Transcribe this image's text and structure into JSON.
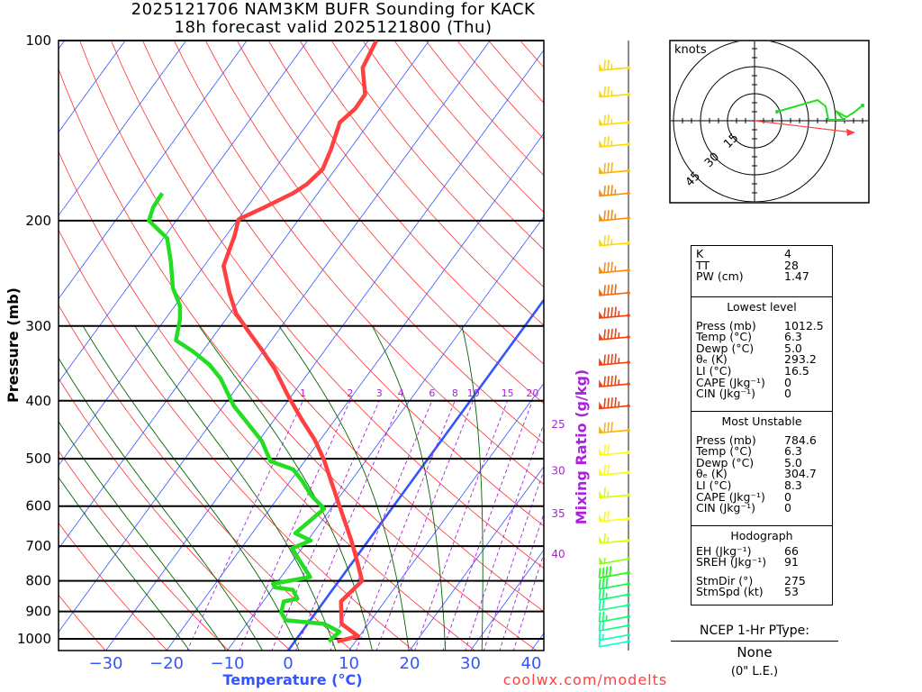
{
  "header": {
    "title_line1": "2025121706 NAM3KM BUFR Sounding for KACK",
    "title_line2": "18h forecast valid 2025121800 (Thu)"
  },
  "footer": {
    "credit": "coolwx.com/modelts"
  },
  "ptype": {
    "heading": "NCEP 1-Hr PType:",
    "value": "None",
    "accum": "(0\" L.E.)"
  },
  "colors": {
    "temperature": "#ff4040",
    "dewpoint": "#22dd22",
    "isotherm": "#3355ff",
    "dry_adiabat": "#ff3030",
    "moist_adiabat": "#006600",
    "mixing_ratio": "#aa22dd",
    "storm_motion": "#ff4040"
  },
  "chart_data": {
    "type": "skew-t",
    "xlabel": "Temperature (°C)",
    "ylabel": "Pressure (mb)",
    "mixing_ratio_label": "Mixing Ratio (g/kg)",
    "pressure_ticks": [
      100,
      200,
      300,
      400,
      500,
      600,
      700,
      800,
      900,
      1000
    ],
    "temperature_ticks": [
      -30,
      -20,
      -10,
      0,
      10,
      20,
      30,
      40
    ],
    "pressure_range": [
      100,
      1046
    ],
    "temperature_range_at_bottom": [
      -38,
      42
    ],
    "mixing_ratio_top_labels": [
      1,
      2,
      3,
      4,
      6,
      8,
      10,
      15,
      20
    ],
    "mixing_ratio_side_labels": [
      25,
      30,
      35,
      40
    ],
    "temperature_profile": [
      [
        1010,
        7.0
      ],
      [
        990,
        9.8
      ],
      [
        944,
        5.6
      ],
      [
        866,
        2.8
      ],
      [
        800,
        3.8
      ],
      [
        750,
        1.1
      ],
      [
        685,
        -2.8
      ],
      [
        650,
        -5.2
      ],
      [
        588,
        -9.8
      ],
      [
        502,
        -17.0
      ],
      [
        465,
        -20.9
      ],
      [
        429,
        -25.6
      ],
      [
        393,
        -30.5
      ],
      [
        354,
        -36.0
      ],
      [
        331,
        -40.0
      ],
      [
        309,
        -44.3
      ],
      [
        286,
        -49.0
      ],
      [
        264,
        -52.6
      ],
      [
        238,
        -56.8
      ],
      [
        212,
        -58.6
      ],
      [
        199,
        -59.9
      ],
      [
        191,
        -57.4
      ],
      [
        180,
        -54.1
      ],
      [
        174,
        -52.9
      ],
      [
        164,
        -52.1
      ],
      [
        152,
        -53.1
      ],
      [
        137,
        -54.9
      ],
      [
        130,
        -54.0
      ],
      [
        123,
        -54.1
      ],
      [
        111,
        -57.7
      ],
      [
        100,
        -58.7
      ]
    ],
    "dewpoint_profile": [
      [
        1010,
        5.6
      ],
      [
        973,
        6.2
      ],
      [
        944,
        2.7
      ],
      [
        931,
        -4.0
      ],
      [
        904,
        -5.7
      ],
      [
        866,
        -6.6
      ],
      [
        857,
        -4.7
      ],
      [
        828,
        -6.5
      ],
      [
        820,
        -9.8
      ],
      [
        809,
        -10.5
      ],
      [
        788,
        -5.2
      ],
      [
        735,
        -9.3
      ],
      [
        706,
        -11.6
      ],
      [
        685,
        -9.5
      ],
      [
        666,
        -12.9
      ],
      [
        606,
        -11.1
      ],
      [
        575,
        -14.9
      ],
      [
        545,
        -18.0
      ],
      [
        521,
        -20.9
      ],
      [
        505,
        -25.6
      ],
      [
        467,
        -29.5
      ],
      [
        408,
        -38.3
      ],
      [
        367,
        -43.8
      ],
      [
        348,
        -47.3
      ],
      [
        331,
        -51.5
      ],
      [
        317,
        -55.7
      ],
      [
        293,
        -57.5
      ],
      [
        278,
        -59.1
      ],
      [
        259,
        -62.5
      ],
      [
        234,
        -66.0
      ],
      [
        214,
        -69.4
      ],
      [
        200,
        -74.5
      ],
      [
        190,
        -75.4
      ],
      [
        180,
        -75.6
      ]
    ],
    "wind_barbs_kt": [
      [
        111,
        265,
        75
      ],
      [
        123,
        265,
        75
      ],
      [
        137,
        265,
        75
      ],
      [
        149,
        265,
        75
      ],
      [
        165,
        265,
        80
      ],
      [
        180,
        265,
        85
      ],
      [
        198,
        265,
        85
      ],
      [
        218,
        265,
        75
      ],
      [
        242,
        265,
        85
      ],
      [
        264,
        265,
        90
      ],
      [
        288,
        265,
        95
      ],
      [
        313,
        265,
        95
      ],
      [
        345,
        265,
        95
      ],
      [
        375,
        265,
        95
      ],
      [
        408,
        265,
        95
      ],
      [
        448,
        265,
        80
      ],
      [
        488,
        265,
        70
      ],
      [
        527,
        265,
        70
      ],
      [
        575,
        265,
        65
      ],
      [
        630,
        265,
        70
      ],
      [
        685,
        265,
        65
      ],
      [
        735,
        270,
        55
      ],
      [
        775,
        270,
        40
      ],
      [
        809,
        270,
        30
      ],
      [
        843,
        270,
        25
      ],
      [
        878,
        270,
        20
      ],
      [
        918,
        270,
        25
      ],
      [
        950,
        270,
        20
      ],
      [
        985,
        270,
        15
      ],
      [
        1010,
        270,
        10
      ]
    ],
    "hodograph": {
      "units_label": "knots",
      "rings_kt": [
        15,
        30,
        45
      ],
      "points_uv_kt": [
        [
          12.5,
          5
        ],
        [
          35,
          11.5
        ],
        [
          39.5,
          8
        ],
        [
          41,
          0.5
        ],
        [
          49.5,
          0.5
        ],
        [
          45,
          5.5
        ],
        [
          51,
          2
        ],
        [
          55,
          4.5
        ],
        [
          60,
          8.5
        ]
      ],
      "storm_motion_uv_kt": [
        54.5,
        -6.5
      ]
    }
  },
  "stats": {
    "indices": [
      {
        "label": "K",
        "value": "4"
      },
      {
        "label": "TT",
        "value": "28"
      },
      {
        "label": "PW (cm)",
        "value": "1.47"
      }
    ],
    "lowest_level": {
      "heading": "Lowest level",
      "rows": [
        {
          "label": "Press (mb)",
          "value": "1012.5"
        },
        {
          "label": "Temp (°C)",
          "value": "6.3"
        },
        {
          "label": "Dewp (°C)",
          "value": "5.0"
        },
        {
          "label": "θₑ (K)",
          "value": "293.2"
        },
        {
          "label": "LI (°C)",
          "value": "16.5"
        },
        {
          "label": "CAPE (Jkg⁻¹)",
          "value": "0"
        },
        {
          "label": "CIN (Jkg⁻¹)",
          "value": "0"
        }
      ]
    },
    "most_unstable": {
      "heading": "Most Unstable",
      "rows": [
        {
          "label": "Press (mb)",
          "value": "784.6"
        },
        {
          "label": "Temp (°C)",
          "value": "6.3"
        },
        {
          "label": "Dewp (°C)",
          "value": "5.0"
        },
        {
          "label": "θₑ (K)",
          "value": "304.7"
        },
        {
          "label": "LI (°C)",
          "value": "8.3"
        },
        {
          "label": "CAPE (Jkg⁻¹)",
          "value": "0"
        },
        {
          "label": "CIN (Jkg⁻¹)",
          "value": "0"
        }
      ]
    },
    "hodograph": {
      "heading": "Hodograph",
      "rows": [
        {
          "label": "EH (Jkg⁻¹)",
          "value": "66"
        },
        {
          "label": "SREH (Jkg⁻¹)",
          "value": "91"
        }
      ],
      "storm_rows": [
        {
          "label": "StmDir (°)",
          "value": "275"
        },
        {
          "label": "StmSpd (kt)",
          "value": "53"
        }
      ]
    }
  }
}
